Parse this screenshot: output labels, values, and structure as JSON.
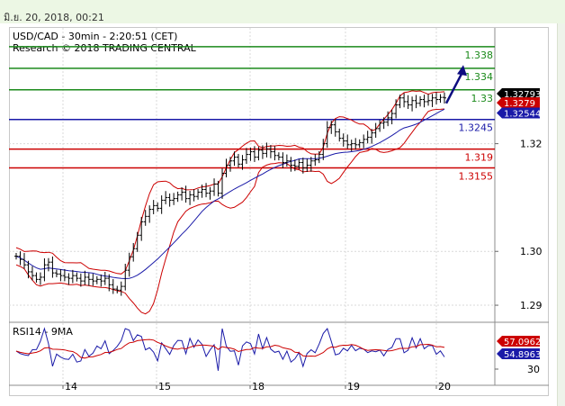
{
  "header": {
    "datetime": "มิ.ย. 20, 2018, 00:21"
  },
  "chart_caption": {
    "line1": "USD/CAD - 30min - 2:20:51 (CET)",
    "line2": "Research © 2018 TRADING CENTRAL"
  },
  "colors": {
    "resistance": "#1b8a1b",
    "support": "#cc0000",
    "pivot": "#1a1aa8",
    "price": "#000000",
    "bollinger": "#cc0000",
    "ma": "#1a1aa8",
    "arrow": "#0d0d80",
    "rsi": "#1a1aa8",
    "rsi_ma": "#cc0000",
    "grid": "#d9d9d9"
  },
  "chart_data": [
    {
      "type": "candlestick",
      "title": "USD/CAD - 30min - 2:20:51 (CET)",
      "ylim": [
        1.287,
        1.3415
      ],
      "y_ticks": [
        1.29,
        1.3,
        1.32
      ],
      "x_ticks": [
        "14",
        "15",
        "18",
        "19",
        "20"
      ],
      "last_price": "1.32793",
      "level_labels": [
        {
          "label": "1.338",
          "value": 1.338,
          "kind": "resistance"
        },
        {
          "label": "1.334",
          "value": 1.334,
          "kind": "resistance"
        },
        {
          "label": "1.33",
          "value": 1.33,
          "kind": "resistance"
        },
        {
          "label": "1.3245",
          "value": 1.3245,
          "kind": "pivot"
        },
        {
          "label": "1.319",
          "value": 1.319,
          "kind": "support"
        },
        {
          "label": "1.3155",
          "value": 1.3155,
          "kind": "support"
        }
      ],
      "price_tags": [
        {
          "label": "1.32793",
          "kind": "price",
          "value": 1.3293
        },
        {
          "label": "1.3279",
          "kind": "support",
          "value": 1.3276
        },
        {
          "label": "1.32544",
          "kind": "pivot",
          "value": 1.3257
        }
      ],
      "forecast_arrow": {
        "from": 1.3275,
        "to": 1.3346
      },
      "close_series": [
        1.2991,
        1.2985,
        1.2975,
        1.2962,
        1.2955,
        1.2948,
        1.2952,
        1.2975,
        1.298,
        1.296,
        1.2958,
        1.2955,
        1.2952,
        1.295,
        1.2955,
        1.295,
        1.2945,
        1.2952,
        1.2948,
        1.2945,
        1.2948,
        1.2945,
        1.295,
        1.2938,
        1.293,
        1.2928,
        1.2935,
        1.2965,
        1.299,
        1.3005,
        1.303,
        1.3055,
        1.3065,
        1.3078,
        1.3085,
        1.308,
        1.3095,
        1.31,
        1.3095,
        1.3098,
        1.3105,
        1.311,
        1.3098,
        1.3105,
        1.3102,
        1.311,
        1.3115,
        1.3108,
        1.3112,
        1.3125,
        1.3108,
        1.3145,
        1.316,
        1.3168,
        1.3175,
        1.3162,
        1.317,
        1.318,
        1.3185,
        1.3175,
        1.3188,
        1.3182,
        1.319,
        1.3185,
        1.3178,
        1.3175,
        1.3165,
        1.3168,
        1.316,
        1.3158,
        1.3165,
        1.3155,
        1.316,
        1.3168,
        1.317,
        1.318,
        1.32,
        1.323,
        1.3235,
        1.3222,
        1.321,
        1.3205,
        1.3198,
        1.32,
        1.3198,
        1.3202,
        1.3208,
        1.3212,
        1.322,
        1.3228,
        1.3238,
        1.324,
        1.3248,
        1.3256,
        1.3272,
        1.3285,
        1.3278,
        1.3272,
        1.328,
        1.3275,
        1.3282,
        1.3278,
        1.328,
        1.3285,
        1.3282,
        1.3286,
        1.3285
      ],
      "rsi": {
        "title": "RSI14 - 9MA",
        "value_label": "54.8963",
        "ma_label": "57.0962",
        "ylim": [
          20,
          80
        ],
        "y_tick": "30"
      }
    }
  ]
}
